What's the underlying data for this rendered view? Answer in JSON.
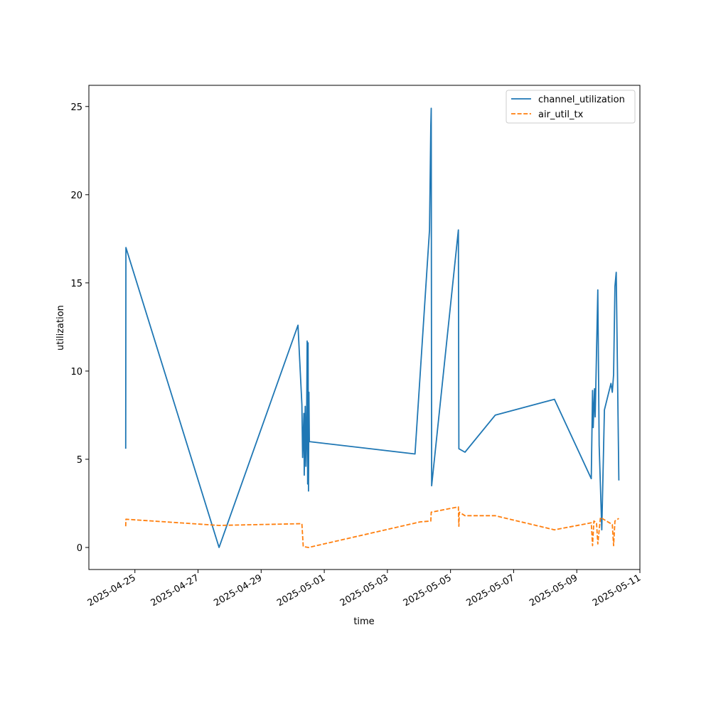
{
  "chart_data": {
    "type": "line",
    "title": "",
    "xlabel": "time",
    "ylabel": "utilization",
    "xlim": [
      "2025-04-23T13:00",
      "2025-05-11T00:00"
    ],
    "ylim": [
      -1.25,
      26.2
    ],
    "x_ticks": [
      "2025-04-25",
      "2025-04-27",
      "2025-04-29",
      "2025-05-01",
      "2025-05-03",
      "2025-05-05",
      "2025-05-07",
      "2025-05-09",
      "2025-05-11"
    ],
    "y_ticks": [
      0,
      5,
      10,
      15,
      20,
      25
    ],
    "grid": false,
    "legend_position": "upper right",
    "series": [
      {
        "name": "channel_utilization",
        "color": "#1f77b4",
        "style": "solid",
        "points": [
          [
            "2025-04-24T17:00",
            5.6
          ],
          [
            "2025-04-24T17:10",
            17.0
          ],
          [
            "2025-04-27T16:00",
            0.0
          ],
          [
            "2025-04-30T04:00",
            12.6
          ],
          [
            "2025-04-30T07:00",
            8.1
          ],
          [
            "2025-04-30T07:30",
            5.1
          ],
          [
            "2025-04-30T08:30",
            7.6
          ],
          [
            "2025-04-30T08:45",
            4.1
          ],
          [
            "2025-04-30T09:30",
            8.0
          ],
          [
            "2025-04-30T10:00",
            4.6
          ],
          [
            "2025-04-30T10:30",
            6.3
          ],
          [
            "2025-04-30T11:00",
            11.7
          ],
          [
            "2025-04-30T11:20",
            3.6
          ],
          [
            "2025-04-30T11:40",
            11.6
          ],
          [
            "2025-04-30T12:00",
            3.2
          ],
          [
            "2025-04-30T12:20",
            8.8
          ],
          [
            "2025-04-30T12:40",
            6.0
          ],
          [
            "2025-05-03T21:00",
            5.3
          ],
          [
            "2025-05-04T08:00",
            18.0
          ],
          [
            "2025-05-04T09:00",
            23.9
          ],
          [
            "2025-05-04T09:20",
            24.9
          ],
          [
            "2025-05-04T09:40",
            3.5
          ],
          [
            "2025-05-05T06:00",
            18.0
          ],
          [
            "2025-05-05T06:20",
            5.6
          ],
          [
            "2025-05-05T11:00",
            5.4
          ],
          [
            "2025-05-06T10:00",
            7.5
          ],
          [
            "2025-05-08T07:00",
            8.4
          ],
          [
            "2025-05-09T11:00",
            3.9
          ],
          [
            "2025-05-09T12:00",
            8.9
          ],
          [
            "2025-05-09T12:30",
            6.8
          ],
          [
            "2025-05-09T13:30",
            9.0
          ],
          [
            "2025-05-09T14:00",
            7.4
          ],
          [
            "2025-05-09T16:00",
            14.6
          ],
          [
            "2025-05-09T17:00",
            5.8
          ],
          [
            "2025-05-09T19:00",
            1.0
          ],
          [
            "2025-05-09T21:00",
            7.8
          ],
          [
            "2025-05-10T02:00",
            9.3
          ],
          [
            "2025-05-10T03:00",
            8.8
          ],
          [
            "2025-05-10T04:00",
            9.8
          ],
          [
            "2025-05-10T05:00",
            14.8
          ],
          [
            "2025-05-10T06:00",
            15.6
          ],
          [
            "2025-05-10T08:00",
            3.8
          ]
        ]
      },
      {
        "name": "air_util_tx",
        "color": "#ff7f0e",
        "style": "dashed",
        "points": [
          [
            "2025-04-24T17:00",
            1.2
          ],
          [
            "2025-04-24T17:10",
            1.6
          ],
          [
            "2025-04-27T16:00",
            1.25
          ],
          [
            "2025-04-30T07:00",
            1.35
          ],
          [
            "2025-04-30T08:00",
            0.05
          ],
          [
            "2025-04-30T12:00",
            0.0
          ],
          [
            "2025-05-04T01:00",
            1.45
          ],
          [
            "2025-05-04T09:00",
            1.5
          ],
          [
            "2025-05-04T09:20",
            2.0
          ],
          [
            "2025-05-05T06:00",
            2.3
          ],
          [
            "2025-05-05T06:20",
            1.2
          ],
          [
            "2025-05-05T06:40",
            2.0
          ],
          [
            "2025-05-05T11:00",
            1.8
          ],
          [
            "2025-05-06T10:00",
            1.8
          ],
          [
            "2025-05-08T07:00",
            1.0
          ],
          [
            "2025-05-09T11:00",
            1.4
          ],
          [
            "2025-05-09T12:00",
            0.1
          ],
          [
            "2025-05-09T13:00",
            1.5
          ],
          [
            "2025-05-09T15:00",
            1.4
          ],
          [
            "2025-05-09T16:00",
            0.2
          ],
          [
            "2025-05-09T18:00",
            1.7
          ],
          [
            "2025-05-10T03:00",
            1.3
          ],
          [
            "2025-05-10T04:00",
            0.1
          ],
          [
            "2025-05-10T05:00",
            1.5
          ],
          [
            "2025-05-10T08:00",
            1.65
          ]
        ]
      }
    ]
  }
}
